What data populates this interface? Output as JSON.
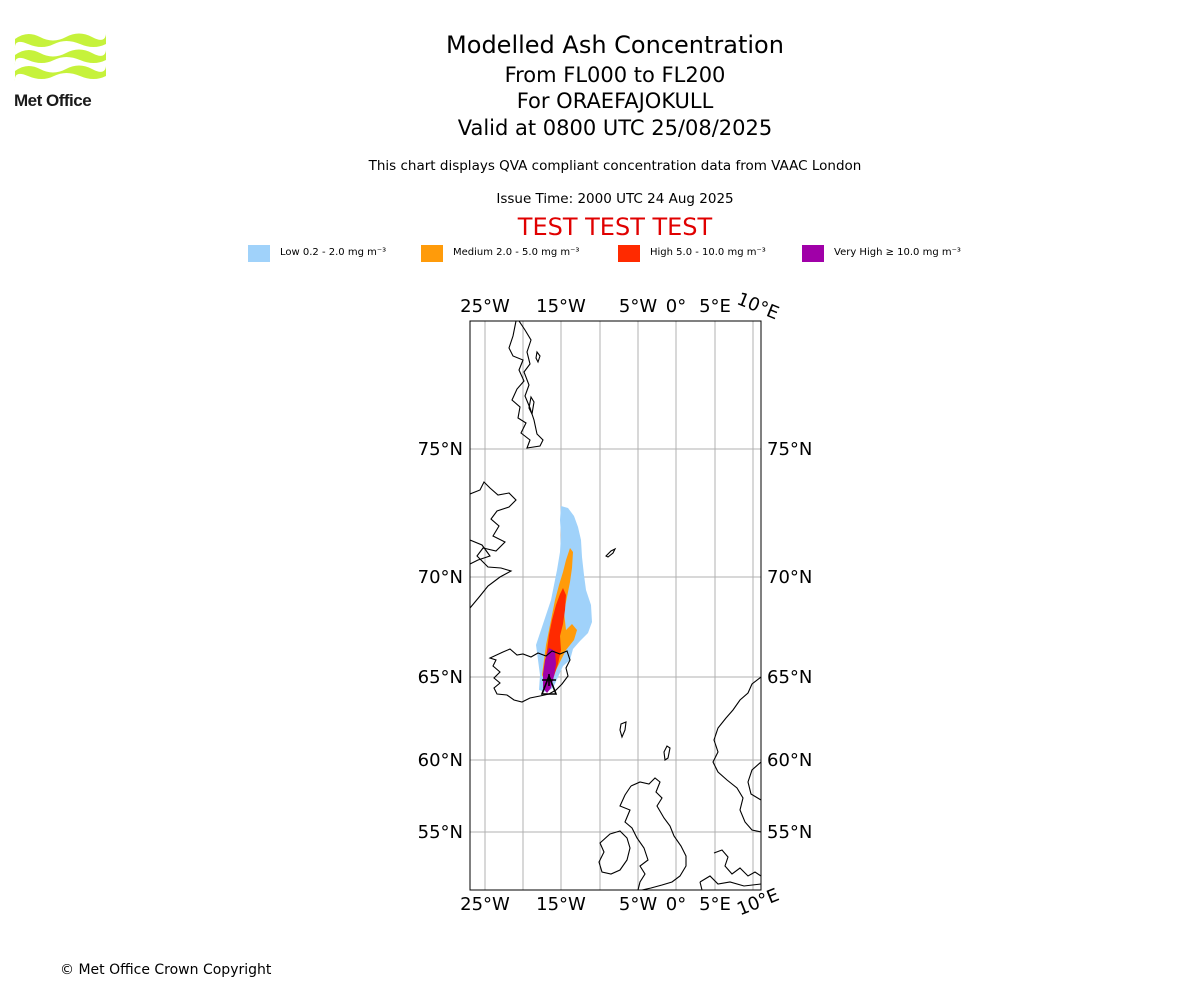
{
  "logo": {
    "name": "Met Office",
    "color": "#c6f23b"
  },
  "title": {
    "main": "Modelled Ash Concentration",
    "levels": "From FL000 to FL200",
    "volcano": "For ORAEFAJOKULL",
    "valid": "Valid at 0800 UTC 25/08/2025",
    "note": "This chart displays QVA compliant concentration data from VAAC London",
    "issue": "Issue Time: 2000 UTC 24 Aug 2025",
    "test_banner": "TEST TEST TEST"
  },
  "legend": [
    {
      "label": "Low 0.2 - 2.0 mg m⁻³",
      "color": "#a0d2fa"
    },
    {
      "label": "Medium 2.0 - 5.0 mg m⁻³",
      "color": "#ff9b0a"
    },
    {
      "label": "High 5.0 - 10.0 mg m⁻³",
      "color": "#ff2a00"
    },
    {
      "label": "Very High  ≥  10.0 mg m⁻³",
      "color": "#a000a8"
    }
  ],
  "map": {
    "lon_ticks_top": [
      "25°W",
      "15°W",
      "5°W",
      "0°",
      "5°E",
      "10°E"
    ],
    "lon_ticks_bottom": [
      "25°W",
      "15°W",
      "5°W",
      "0°",
      "5°E",
      "10°E"
    ],
    "lat_ticks": [
      "75°N",
      "70°N",
      "65°N",
      "60°N",
      "55°N"
    ],
    "grid": true,
    "colors": {
      "coast": "#000000",
      "grid": "#b0b0b0"
    }
  },
  "copyright": "© Met Office Crown Copyright"
}
